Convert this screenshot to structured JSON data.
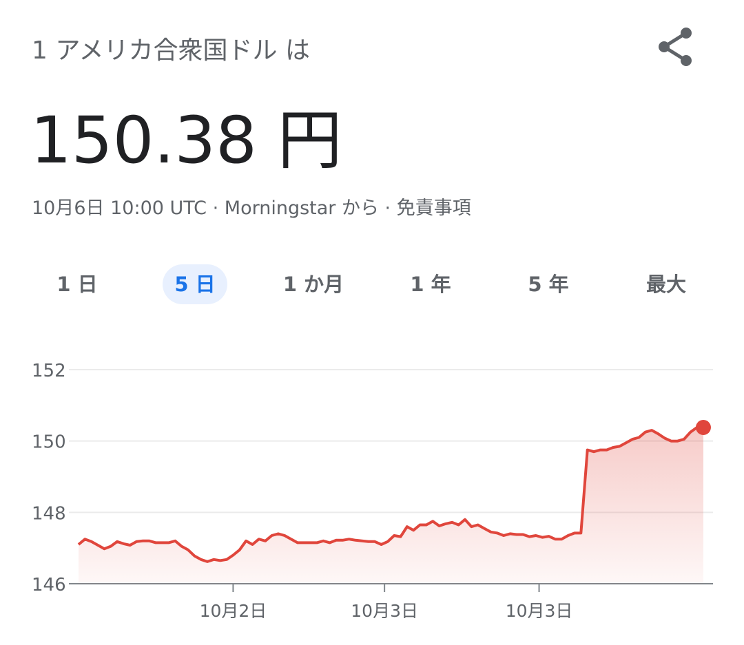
{
  "header": {
    "title": "1 アメリカ合衆国ドル は",
    "value": "150.38 円",
    "subtitle": "10月6日 10:00 UTC · Morningstar から · 免責事項"
  },
  "tabs": [
    "1 日",
    "5 日",
    "1 か月",
    "1 年",
    "5 年",
    "最大"
  ],
  "selected_tab": 1,
  "chart_data": {
    "type": "line",
    "color": "#e0463c",
    "values": [
      147.1,
      147.25,
      147.18,
      147.08,
      146.98,
      147.05,
      147.18,
      147.12,
      147.08,
      147.18,
      147.2,
      147.2,
      147.15,
      147.15,
      147.15,
      147.2,
      147.05,
      146.95,
      146.78,
      146.68,
      146.62,
      146.68,
      146.65,
      146.68,
      146.8,
      146.95,
      147.2,
      147.1,
      147.25,
      147.2,
      147.35,
      147.4,
      147.35,
      147.25,
      147.15,
      147.15,
      147.15,
      147.15,
      147.2,
      147.15,
      147.22,
      147.22,
      147.25,
      147.22,
      147.2,
      147.18,
      147.18,
      147.1,
      147.18,
      147.35,
      147.32,
      147.6,
      147.5,
      147.65,
      147.65,
      147.75,
      147.62,
      147.68,
      147.72,
      147.65,
      147.8,
      147.6,
      147.65,
      147.55,
      147.45,
      147.42,
      147.35,
      147.4,
      147.38,
      147.38,
      147.32,
      147.35,
      147.3,
      147.33,
      147.25,
      147.25,
      147.35,
      147.42,
      147.42,
      149.75,
      149.7,
      149.75,
      149.75,
      149.82,
      149.85,
      149.95,
      150.05,
      150.1,
      150.25,
      150.3,
      150.2,
      150.08,
      150.0,
      150.0,
      150.05,
      150.25,
      150.38,
      150.38
    ],
    "xlim": [
      -1.5,
      98.5
    ],
    "xticks": [
      {
        "value": 24,
        "label": "10月2日"
      },
      {
        "value": 47.5,
        "label": "10月3日"
      },
      {
        "value": 71.5,
        "label": "10月3日"
      }
    ],
    "ylim": [
      146,
      152
    ],
    "yticks": [
      146,
      148,
      150,
      152
    ],
    "grid": true
  }
}
